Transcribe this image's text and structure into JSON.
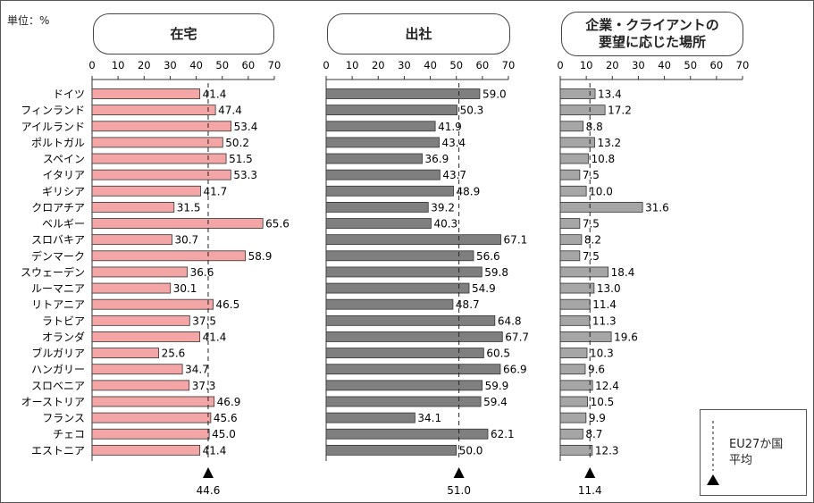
{
  "unit_label": "単位：%",
  "chart_data": {
    "type": "bar",
    "orientation": "horizontal",
    "countries": [
      "ドイツ",
      "フィンランド",
      "アイルランド",
      "ポルトガル",
      "スペイン",
      "イタリア",
      "ギリシア",
      "クロアチア",
      "ベルギー",
      "スロバキア",
      "デンマーク",
      "スウェーデン",
      "ルーマニア",
      "リトアニア",
      "ラトビア",
      "オランダ",
      "ブルガリア",
      "ハンガリー",
      "スロベニア",
      "オーストリア",
      "フランス",
      "チェコ",
      "エストニア"
    ],
    "axis_ticks": [
      "0",
      "10",
      "20",
      "30",
      "40",
      "50",
      "60",
      "70"
    ],
    "xlim": [
      0,
      70
    ],
    "grid": false,
    "panels": [
      {
        "title": "在宅",
        "color": "#f4a6a6",
        "values": [
          41.4,
          47.4,
          53.4,
          50.2,
          51.5,
          53.3,
          41.7,
          31.5,
          65.6,
          30.7,
          58.9,
          36.6,
          30.1,
          46.5,
          37.5,
          41.4,
          25.6,
          34.7,
          37.3,
          46.9,
          45.6,
          45.0,
          41.4
        ],
        "eu_average": 44.6,
        "eu_average_label": "44.6"
      },
      {
        "title": "出社",
        "color": "#7f7f7f",
        "values": [
          59.0,
          50.3,
          41.9,
          43.4,
          36.9,
          43.7,
          48.9,
          39.2,
          40.3,
          67.1,
          56.6,
          59.8,
          54.9,
          48.7,
          64.8,
          67.7,
          60.5,
          66.9,
          59.9,
          59.4,
          34.1,
          62.1,
          50.0
        ],
        "eu_average": 51.0,
        "eu_average_label": "51.0"
      },
      {
        "title": "企業・クライアントの\n要望に応じた場所",
        "color": "#a6a6a6",
        "values": [
          13.4,
          17.2,
          8.8,
          13.2,
          10.8,
          7.5,
          10.0,
          31.6,
          7.5,
          8.2,
          7.5,
          18.4,
          13.0,
          11.4,
          11.3,
          19.6,
          10.3,
          9.6,
          12.4,
          10.5,
          9.9,
          8.7,
          12.3
        ],
        "eu_average": 11.4,
        "eu_average_label": "11.4"
      }
    ],
    "legend": {
      "label": "EU27か国\n平均",
      "placement": "bottom-right"
    }
  }
}
